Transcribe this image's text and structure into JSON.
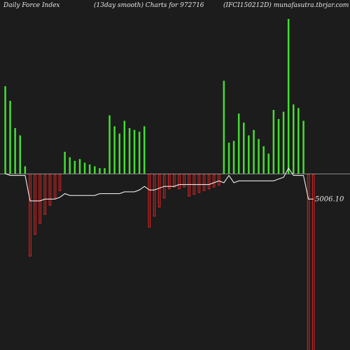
{
  "header": {
    "left": "Daily Force  Index",
    "center": "(13day smooth) Charts for 972716",
    "right": "(IFCI150212D) munafasutra.tbrjar.com"
  },
  "chart_data": {
    "type": "bar",
    "title": "(13day smooth) Charts for 972716",
    "xlabel": "",
    "ylabel": "",
    "ylim": [
      -100,
      90
    ],
    "grid": false,
    "legend": "none",
    "last_value_label": "5006.10",
    "bars": [
      {
        "value": 48,
        "direction": "up"
      },
      {
        "value": 40,
        "direction": "up"
      },
      {
        "value": 25,
        "direction": "up"
      },
      {
        "value": 21,
        "direction": "up"
      },
      {
        "value": 4,
        "direction": "up"
      },
      {
        "value": -45,
        "direction": "down"
      },
      {
        "value": -33,
        "direction": "down"
      },
      {
        "value": -27,
        "direction": "down"
      },
      {
        "value": -22,
        "direction": "down"
      },
      {
        "value": -17,
        "direction": "down"
      },
      {
        "value": -13,
        "direction": "down"
      },
      {
        "value": -9,
        "direction": "down"
      },
      {
        "value": 12,
        "direction": "up"
      },
      {
        "value": 9,
        "direction": "up"
      },
      {
        "value": 7,
        "direction": "up"
      },
      {
        "value": 8,
        "direction": "up"
      },
      {
        "value": 6,
        "direction": "up"
      },
      {
        "value": 5,
        "direction": "up"
      },
      {
        "value": 4,
        "direction": "up"
      },
      {
        "value": 3,
        "direction": "up"
      },
      {
        "value": 3,
        "direction": "up"
      },
      {
        "value": 32,
        "direction": "up"
      },
      {
        "value": 26,
        "direction": "up"
      },
      {
        "value": 22,
        "direction": "up"
      },
      {
        "value": 29,
        "direction": "up"
      },
      {
        "value": 25,
        "direction": "up"
      },
      {
        "value": 24,
        "direction": "up"
      },
      {
        "value": 23,
        "direction": "up"
      },
      {
        "value": 26,
        "direction": "up"
      },
      {
        "value": -29,
        "direction": "down"
      },
      {
        "value": -23,
        "direction": "down"
      },
      {
        "value": -18,
        "direction": "down"
      },
      {
        "value": -13,
        "direction": "down"
      },
      {
        "value": -8,
        "direction": "down"
      },
      {
        "value": -7,
        "direction": "down"
      },
      {
        "value": -8,
        "direction": "down"
      },
      {
        "value": -7,
        "direction": "down"
      },
      {
        "value": -12,
        "direction": "down"
      },
      {
        "value": -11,
        "direction": "down"
      },
      {
        "value": -10,
        "direction": "down"
      },
      {
        "value": -9,
        "direction": "down"
      },
      {
        "value": -8,
        "direction": "down"
      },
      {
        "value": -7,
        "direction": "down"
      },
      {
        "value": -6,
        "direction": "down"
      },
      {
        "value": 51,
        "direction": "up"
      },
      {
        "value": 17,
        "direction": "up"
      },
      {
        "value": 18,
        "direction": "up"
      },
      {
        "value": 33,
        "direction": "up"
      },
      {
        "value": 28,
        "direction": "up"
      },
      {
        "value": 21,
        "direction": "up"
      },
      {
        "value": 24,
        "direction": "up"
      },
      {
        "value": 19,
        "direction": "up"
      },
      {
        "value": 15,
        "direction": "up"
      },
      {
        "value": 11,
        "direction": "up"
      },
      {
        "value": 35,
        "direction": "up"
      },
      {
        "value": 30,
        "direction": "up"
      },
      {
        "value": 34,
        "direction": "up"
      },
      {
        "value": 85,
        "direction": "up"
      },
      {
        "value": 38,
        "direction": "up"
      },
      {
        "value": 36,
        "direction": "up"
      },
      {
        "value": 29,
        "direction": "up"
      },
      {
        "value": -98,
        "direction": "down"
      },
      {
        "value": -98,
        "direction": "down"
      }
    ],
    "smooth_line": [
      0,
      -1,
      -1,
      -1,
      -1,
      -15,
      -15,
      -15,
      -14,
      -14,
      -14,
      -13,
      -11,
      -12,
      -12,
      -12,
      -12,
      -12,
      -12,
      -11,
      -11,
      -11,
      -11,
      -11,
      -10,
      -10,
      -10,
      -9,
      -7,
      -9,
      -9,
      -8,
      -7,
      -7,
      -7,
      -6,
      -6,
      -6,
      -6,
      -6,
      -6,
      -6,
      -5,
      -4,
      -5,
      -1,
      -5,
      -4,
      -4,
      -4,
      -4,
      -4,
      -4,
      -4,
      -4,
      -3,
      -2,
      3,
      -1,
      -1,
      -1,
      -14,
      -14
    ],
    "colors": {
      "up": "#44dd33",
      "down": "#ee2222",
      "line": "#ffffff",
      "axis": "#888888",
      "background": "#1c1c1c"
    }
  }
}
